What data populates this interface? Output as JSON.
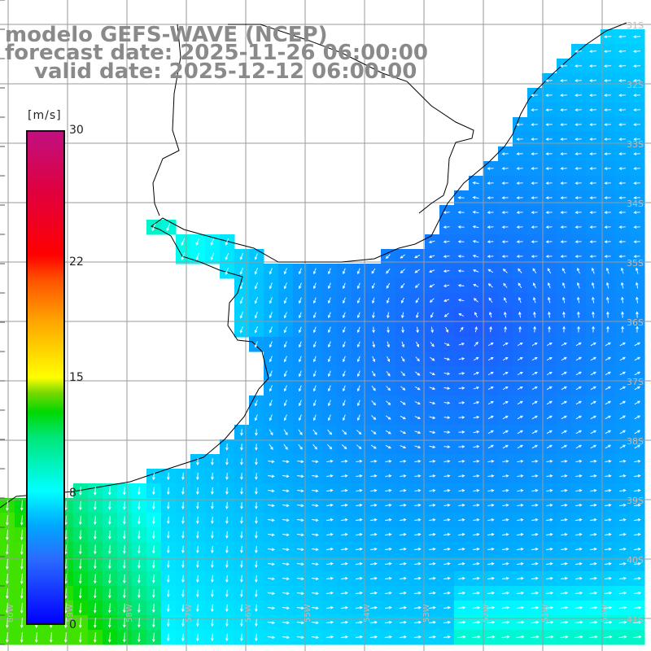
{
  "title": {
    "model": "modelo GEFS-WAVE (NCEP)",
    "forecast": "forecast date: 2025-11-26 06:00:00",
    "valid": "valid date: 2025-12-12 06:00:00"
  },
  "colorbar": {
    "units": "[m/s]",
    "min": 0,
    "max": 30,
    "tick_labels": [
      "30",
      "22",
      "15",
      "8",
      "0"
    ],
    "tick_values": [
      30,
      22,
      15,
      8,
      0
    ],
    "colors": {
      "low": "#0000ff",
      "mid_low": "#00ffff",
      "mid": "#00d800",
      "mid_high": "#ffff00",
      "high": "#ff0000",
      "max": "#c01080"
    }
  },
  "map": {
    "variable": "wind speed and direction (arrows)",
    "land_color": "#ffffff",
    "coast_color": "#000000",
    "grid_color": "#9a9a9a",
    "arrow_color": "#ffffff",
    "lat_labels": [
      "31S",
      "32S",
      "33S",
      "34S",
      "35S",
      "36S",
      "37S",
      "38S",
      "39S",
      "40S",
      "41S"
    ],
    "lon_labels": [
      "60W",
      "59W",
      "58W",
      "57W",
      "56W",
      "55W",
      "54W",
      "53W",
      "52W",
      "51W",
      "50W"
    ]
  }
}
